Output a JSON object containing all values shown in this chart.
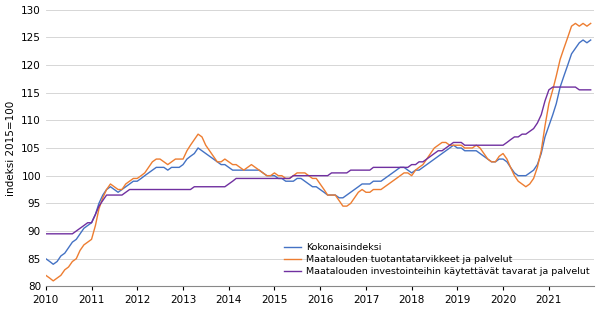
{
  "title": "",
  "ylabel": "indeksi 2015=100",
  "ylim": [
    80,
    130
  ],
  "yticks": [
    80,
    85,
    90,
    95,
    100,
    105,
    110,
    115,
    120,
    125,
    130
  ],
  "color_total": "#4472C4",
  "color_prod": "#ED7D31",
  "color_invest": "#7030A0",
  "legend_labels": [
    "Kokonaisindeksi",
    "Maatalouden tuotantatarvikkeet ja palvelut",
    "Maatalouden investointeihin käytettävät tavarat ja palvelut"
  ],
  "total_index": [
    85.0,
    84.5,
    84.0,
    84.5,
    85.5,
    86.0,
    87.0,
    88.0,
    88.5,
    89.5,
    90.5,
    91.0,
    91.5,
    93.0,
    95.0,
    96.5,
    97.5,
    98.0,
    97.5,
    97.0,
    97.5,
    98.0,
    98.5,
    99.0,
    99.0,
    99.5,
    100.0,
    100.5,
    101.0,
    101.5,
    101.5,
    101.5,
    101.0,
    101.5,
    101.5,
    101.5,
    102.0,
    103.0,
    103.5,
    104.0,
    105.0,
    104.5,
    104.0,
    103.5,
    103.0,
    102.5,
    102.0,
    102.0,
    101.5,
    101.0,
    101.0,
    101.0,
    101.0,
    101.0,
    101.0,
    101.0,
    101.0,
    100.5,
    100.0,
    100.0,
    100.0,
    99.5,
    99.5,
    99.0,
    99.0,
    99.0,
    99.5,
    99.5,
    99.0,
    98.5,
    98.0,
    98.0,
    97.5,
    97.0,
    96.5,
    96.5,
    96.5,
    96.0,
    96.0,
    96.5,
    97.0,
    97.5,
    98.0,
    98.5,
    98.5,
    98.5,
    99.0,
    99.0,
    99.0,
    99.5,
    100.0,
    100.5,
    101.0,
    101.5,
    101.5,
    101.0,
    100.5,
    101.0,
    101.0,
    101.5,
    102.0,
    102.5,
    103.0,
    103.5,
    104.0,
    104.5,
    105.0,
    105.5,
    105.0,
    105.0,
    104.5,
    104.5,
    104.5,
    104.5,
    104.0,
    103.5,
    103.0,
    102.5,
    102.5,
    103.0,
    103.0,
    102.5,
    101.5,
    100.5,
    100.0,
    100.0,
    100.0,
    100.5,
    101.0,
    102.0,
    104.0,
    107.0,
    109.0,
    111.0,
    113.0,
    116.0,
    118.0,
    120.0,
    122.0,
    123.0,
    124.0,
    124.5,
    124.0,
    124.5
  ],
  "prod_index": [
    82.0,
    81.5,
    81.0,
    81.5,
    82.0,
    83.0,
    83.5,
    84.5,
    85.0,
    86.5,
    87.5,
    88.0,
    88.5,
    91.0,
    94.0,
    96.0,
    97.5,
    98.5,
    98.0,
    97.5,
    97.5,
    98.5,
    99.0,
    99.5,
    99.5,
    100.0,
    100.5,
    101.5,
    102.5,
    103.0,
    103.0,
    102.5,
    102.0,
    102.5,
    103.0,
    103.0,
    103.0,
    104.5,
    105.5,
    106.5,
    107.5,
    107.0,
    105.5,
    104.5,
    103.5,
    102.5,
    102.5,
    103.0,
    102.5,
    102.0,
    102.0,
    101.5,
    101.0,
    101.5,
    102.0,
    101.5,
    101.0,
    100.5,
    100.0,
    100.0,
    100.5,
    100.0,
    100.0,
    99.5,
    99.5,
    100.0,
    100.5,
    100.5,
    100.5,
    100.0,
    99.5,
    99.5,
    98.5,
    97.5,
    96.5,
    96.5,
    96.5,
    95.5,
    94.5,
    94.5,
    95.0,
    96.0,
    97.0,
    97.5,
    97.0,
    97.0,
    97.5,
    97.5,
    97.5,
    98.0,
    98.5,
    99.0,
    99.5,
    100.0,
    100.5,
    100.5,
    100.0,
    101.0,
    101.5,
    102.0,
    103.0,
    104.0,
    105.0,
    105.5,
    106.0,
    106.0,
    105.5,
    105.5,
    105.5,
    105.5,
    105.0,
    105.0,
    105.0,
    105.5,
    105.0,
    104.0,
    103.0,
    102.5,
    102.5,
    103.5,
    104.0,
    103.0,
    101.5,
    100.0,
    99.0,
    98.5,
    98.0,
    98.5,
    99.5,
    101.5,
    104.5,
    109.0,
    113.0,
    115.5,
    118.0,
    121.0,
    123.0,
    125.0,
    127.0,
    127.5,
    127.0,
    127.5,
    127.0,
    127.5
  ],
  "invest_index": [
    89.5,
    89.5,
    89.5,
    89.5,
    89.5,
    89.5,
    89.5,
    89.5,
    90.0,
    90.5,
    91.0,
    91.5,
    91.5,
    93.0,
    94.5,
    95.5,
    96.5,
    96.5,
    96.5,
    96.5,
    96.5,
    97.0,
    97.5,
    97.5,
    97.5,
    97.5,
    97.5,
    97.5,
    97.5,
    97.5,
    97.5,
    97.5,
    97.5,
    97.5,
    97.5,
    97.5,
    97.5,
    97.5,
    97.5,
    98.0,
    98.0,
    98.0,
    98.0,
    98.0,
    98.0,
    98.0,
    98.0,
    98.0,
    98.5,
    99.0,
    99.5,
    99.5,
    99.5,
    99.5,
    99.5,
    99.5,
    99.5,
    99.5,
    99.5,
    99.5,
    99.5,
    99.5,
    99.5,
    99.5,
    99.5,
    100.0,
    100.0,
    100.0,
    100.0,
    100.0,
    100.0,
    100.0,
    100.0,
    100.0,
    100.0,
    100.5,
    100.5,
    100.5,
    100.5,
    100.5,
    101.0,
    101.0,
    101.0,
    101.0,
    101.0,
    101.0,
    101.5,
    101.5,
    101.5,
    101.5,
    101.5,
    101.5,
    101.5,
    101.5,
    101.5,
    101.5,
    102.0,
    102.0,
    102.5,
    102.5,
    103.0,
    103.5,
    104.0,
    104.5,
    104.5,
    105.0,
    105.5,
    106.0,
    106.0,
    106.0,
    105.5,
    105.5,
    105.5,
    105.5,
    105.5,
    105.5,
    105.5,
    105.5,
    105.5,
    105.5,
    105.5,
    106.0,
    106.5,
    107.0,
    107.0,
    107.5,
    107.5,
    108.0,
    108.5,
    109.5,
    111.0,
    113.5,
    115.5,
    116.0,
    116.0,
    116.0,
    116.0,
    116.0,
    116.0,
    116.0,
    115.5,
    115.5,
    115.5,
    115.5
  ]
}
